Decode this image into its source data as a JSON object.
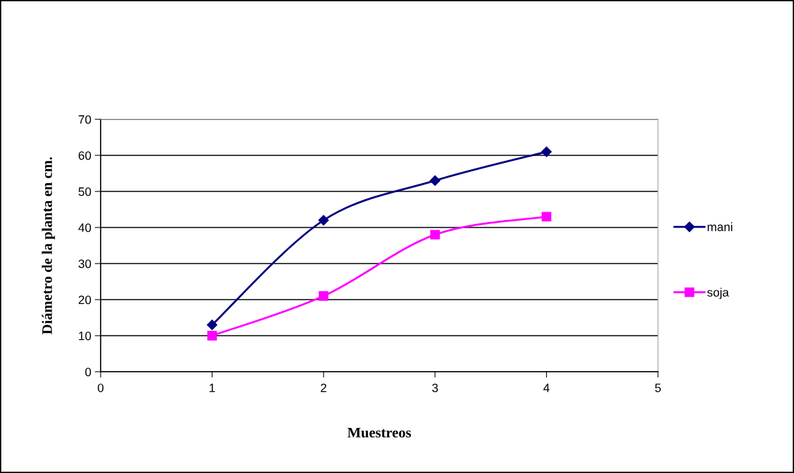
{
  "chart_data": {
    "type": "line",
    "xlabel": "Muestreos",
    "ylabel": "Diámetro de la planta en cm.",
    "x": [
      1,
      2,
      3,
      4
    ],
    "series": [
      {
        "name": "mani",
        "color": "#000080",
        "marker": "diamond",
        "values": [
          13,
          42,
          53,
          61
        ]
      },
      {
        "name": "soja",
        "color": "#ff00ff",
        "marker": "square",
        "values": [
          10,
          21,
          38,
          43
        ]
      }
    ],
    "xlim": [
      0,
      5
    ],
    "xticks": [
      0,
      1,
      2,
      3,
      4,
      5
    ],
    "ylim": [
      0,
      70
    ],
    "yticks": [
      0,
      10,
      20,
      30,
      40,
      50,
      60,
      70
    ],
    "grid": "y",
    "legend": "right",
    "line_style": "solid"
  }
}
